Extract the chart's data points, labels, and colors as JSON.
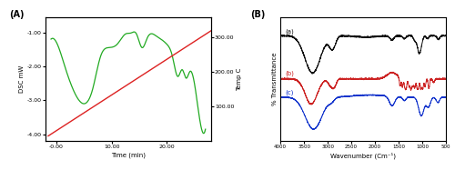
{
  "panel_A_label": "(A)",
  "panel_B_label": "(B)",
  "dsc_ylabel": "DSC mW",
  "temp_ylabel": "Temp C",
  "time_xlabel": "Time (min)",
  "ftir_xlabel": "Wavenumber (Cm⁻¹)",
  "ftir_ylabel": "% Transmittance",
  "dsc_color": "#22AA22",
  "temp_color": "#DD2222",
  "ftir_color_a": "#111111",
  "ftir_color_b": "#CC2222",
  "ftir_color_c": "#1133CC"
}
